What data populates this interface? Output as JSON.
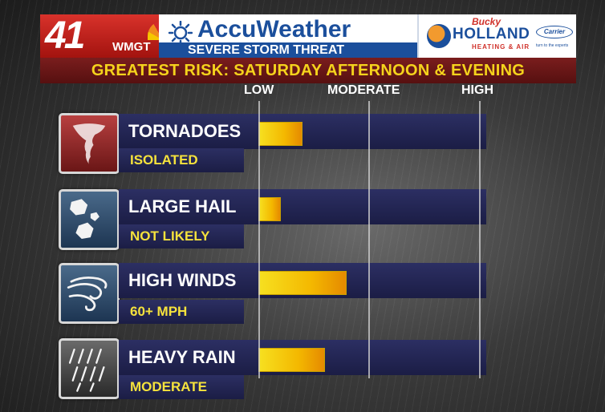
{
  "station": {
    "number": "41",
    "call_sign": "WMGT"
  },
  "header": {
    "brand": "AccuWeather",
    "subtitle": "SEVERE STORM THREAT"
  },
  "sponsor": {
    "script_name": "Bucky",
    "name": "HOLLAND",
    "tagline": "HEATING & AIR",
    "partner": "Carrier",
    "partner_tagline": "turn to the experts"
  },
  "banner": {
    "text": "GREATEST RISK: SATURDAY AFTERNOON & EVENING"
  },
  "scale": {
    "low": "LOW",
    "moderate": "MODERATE",
    "high": "HIGH"
  },
  "colors": {
    "banner_text": "#f5d31c",
    "bar_fill": "#f4b800",
    "panel": "#1b1d45",
    "station_red": "#c6231d",
    "brand_blue": "#1b4f9c"
  },
  "threats": [
    {
      "icon": "tornado-icon",
      "label": "TORNADOES",
      "level_text": "ISOLATED",
      "risk_level": 0.2
    },
    {
      "icon": "hail-icon",
      "label": "LARGE HAIL",
      "level_text": "NOT LIKELY",
      "risk_level": 0.1
    },
    {
      "icon": "wind-icon",
      "label": "HIGH WINDS",
      "level_text": "60+ MPH",
      "risk_level": 0.4
    },
    {
      "icon": "rain-icon",
      "label": "HEAVY RAIN",
      "level_text": "MODERATE",
      "risk_level": 0.3
    }
  ]
}
